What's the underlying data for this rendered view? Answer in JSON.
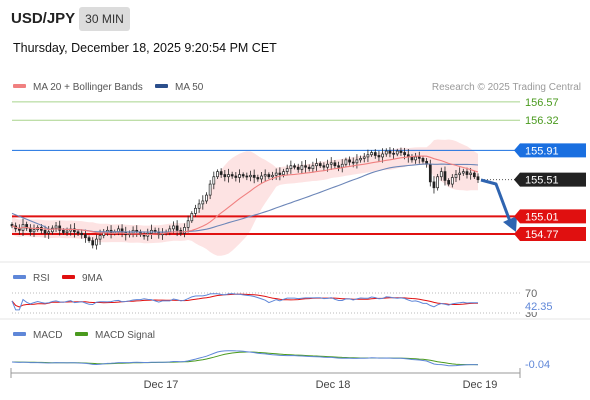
{
  "header": {
    "symbol": "USD/JPY",
    "timeframe": "30 MIN",
    "datetime": "Thursday, December 18, 2025 9:20:54 PM CET"
  },
  "legend": {
    "ma20_label": "MA 20 + Bollinger Bands",
    "ma50_label": "MA 50",
    "attribution": "Research © 2025 Trading Central"
  },
  "colors": {
    "ma20": "#f08080",
    "ma50": "#2b4f8c",
    "band_fill": "#fde3e3",
    "green_level": "#4a9a1e",
    "blue_level": "#1a6fe0",
    "red_level": "#e01010",
    "last_price_bg": "#222222",
    "arrow": "#2f64b0",
    "rsi": "#5f87d8",
    "rsi_ma": "#e01010",
    "macd": "#5f87d8",
    "macd_signal": "#4a9a1e"
  },
  "price_levels": [
    {
      "value": 156.57,
      "label": "156.57",
      "style": "green-text"
    },
    {
      "value": 156.32,
      "label": "156.32",
      "style": "green-text"
    },
    {
      "value": 155.91,
      "label": "155.91",
      "style": "blue-box"
    },
    {
      "value": 155.51,
      "label": "155.51",
      "style": "last-price"
    },
    {
      "value": 155.01,
      "label": "155.01",
      "style": "red-box"
    },
    {
      "value": 154.77,
      "label": "154.77",
      "style": "red-box"
    }
  ],
  "rsi_panel": {
    "rsi_label": "RSI",
    "ma_label": "9MA",
    "level_70": "70",
    "value_label": "42.35",
    "level_30": "30"
  },
  "macd_panel": {
    "macd_label": "MACD",
    "signal_label": "MACD Signal",
    "value_label": "-0.04"
  },
  "x_axis": {
    "labels": [
      "Dec 17",
      "Dec 18",
      "Dec 19"
    ]
  },
  "chart_data": {
    "type": "candlestick",
    "symbol": "USD/JPY",
    "interval": "30 MIN",
    "ylim": [
      154.62,
      156.8
    ],
    "x_ticks": [
      "Dec 17",
      "Dec 18",
      "Dec 19"
    ],
    "close": [
      154.88,
      154.84,
      154.82,
      154.9,
      154.85,
      154.8,
      154.83,
      154.86,
      154.82,
      154.78,
      154.8,
      154.85,
      154.88,
      154.82,
      154.79,
      154.81,
      154.84,
      154.8,
      154.78,
      154.76,
      154.72,
      154.68,
      154.62,
      154.7,
      154.75,
      154.8,
      154.82,
      154.78,
      154.8,
      154.84,
      154.79,
      154.76,
      154.78,
      154.82,
      154.8,
      154.76,
      154.74,
      154.78,
      154.82,
      154.8,
      154.76,
      154.78,
      154.8,
      154.84,
      154.88,
      154.82,
      154.78,
      154.86,
      154.95,
      155.05,
      155.12,
      155.18,
      155.22,
      155.3,
      155.45,
      155.55,
      155.62,
      155.58,
      155.55,
      155.58,
      155.56,
      155.54,
      155.58,
      155.56,
      155.55,
      155.57,
      155.54,
      155.52,
      155.56,
      155.58,
      155.55,
      155.57,
      155.6,
      155.58,
      155.62,
      155.66,
      155.7,
      155.68,
      155.65,
      155.7,
      155.68,
      155.66,
      155.7,
      155.73,
      155.7,
      155.68,
      155.72,
      155.74,
      155.7,
      155.68,
      155.72,
      155.78,
      155.75,
      155.74,
      155.78,
      155.8,
      155.82,
      155.85,
      155.88,
      155.84,
      155.82,
      155.86,
      155.9,
      155.87,
      155.86,
      155.9,
      155.88,
      155.85,
      155.82,
      155.78,
      155.82,
      155.8,
      155.76,
      155.72,
      155.48,
      155.4,
      155.55,
      155.62,
      155.5,
      155.45,
      155.54,
      155.58,
      155.6,
      155.62,
      155.58,
      155.6,
      155.55,
      155.51
    ]
  }
}
